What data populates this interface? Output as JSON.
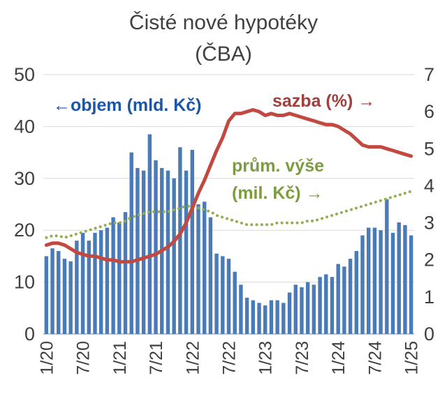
{
  "title": "Čisté nové hypotéky",
  "subtitle": "(ČBA)",
  "annotations": {
    "volume_label": "←objem (mld. Kč)",
    "rate_label": "sazba (%) →",
    "avg_label_line1": "prům. výše",
    "avg_label_line2": "(mil. Kč) →"
  },
  "colors": {
    "title_text": "#404040",
    "bar": "#4a7bb7",
    "rate_line": "#c2493f",
    "avg_line": "#94ad52",
    "volume_text": "#1b56a8",
    "rate_text": "#a33f3b",
    "avg_text": "#7d9c42",
    "axis_text": "#3f3f3f",
    "grid": "#d9d9d9"
  },
  "chart_data": {
    "type": "bar",
    "subtype": "combo bar + line, dual axis",
    "title": "Čisté nové hypotéky (ČBA)",
    "x": [
      "1/20",
      "2/20",
      "3/20",
      "4/20",
      "5/20",
      "6/20",
      "7/20",
      "8/20",
      "9/20",
      "10/20",
      "11/20",
      "12/20",
      "1/21",
      "2/21",
      "3/21",
      "4/21",
      "5/21",
      "6/21",
      "7/21",
      "8/21",
      "9/21",
      "10/21",
      "11/21",
      "12/21",
      "1/22",
      "2/22",
      "3/22",
      "4/22",
      "5/22",
      "6/22",
      "7/22",
      "8/22",
      "9/22",
      "10/22",
      "11/22",
      "12/22",
      "1/23",
      "2/23",
      "3/23",
      "4/23",
      "5/23",
      "6/23",
      "7/23",
      "8/23",
      "9/23",
      "10/23",
      "11/23",
      "12/23",
      "1/24",
      "2/24",
      "3/24",
      "4/24",
      "5/24",
      "6/24",
      "7/24",
      "8/24",
      "9/24",
      "10/24",
      "11/24",
      "12/24",
      "1/25"
    ],
    "x_tick_labels": [
      "1/20",
      "7/20",
      "1/21",
      "7/21",
      "1/22",
      "7/22",
      "1/23",
      "7/23",
      "1/24",
      "7/24",
      "1/25"
    ],
    "left_axis": {
      "label": "objem (mld. Kč)",
      "min": 0,
      "max": 50,
      "ticks": [
        0,
        10,
        20,
        30,
        40,
        50
      ]
    },
    "right_axis": {
      "label": "sazba (%) / prům. výše (mil. Kč)",
      "min": 0,
      "max": 7,
      "ticks": [
        0,
        1,
        2,
        3,
        4,
        5,
        6,
        7
      ]
    },
    "grid": "horizontal",
    "legend_position": "in-plot text annotations",
    "series": [
      {
        "name": "objem (mld. Kč)",
        "type": "bar",
        "axis": "left",
        "color": "#4a7bb7",
        "values": [
          15,
          16.5,
          16,
          14.5,
          14,
          18,
          19.5,
          18,
          19.5,
          20,
          20.5,
          22.5,
          21.5,
          23.5,
          35,
          32,
          31.5,
          38.5,
          33.5,
          32,
          31.5,
          30,
          36,
          31.5,
          35.5,
          25,
          25.5,
          22.5,
          15.5,
          15,
          14.5,
          12,
          9.5,
          7,
          6.5,
          6,
          5.5,
          6.5,
          6.5,
          6,
          8,
          9.5,
          9,
          10,
          9.5,
          11,
          11.5,
          11,
          13.5,
          13,
          14.5,
          16,
          19,
          20.5,
          20.5,
          20,
          26,
          19.5,
          21.5,
          21,
          19
        ]
      },
      {
        "name": "prům. výše (mil. Kč)",
        "type": "dotted",
        "axis": "right",
        "color": "#94ad52",
        "values": [
          2.6,
          2.65,
          2.65,
          2.6,
          2.65,
          2.7,
          2.75,
          2.8,
          2.85,
          2.9,
          2.95,
          3.0,
          3.0,
          3.05,
          3.15,
          3.2,
          3.25,
          3.3,
          3.3,
          3.3,
          3.3,
          3.35,
          3.4,
          3.45,
          3.45,
          3.4,
          3.35,
          3.3,
          3.2,
          3.15,
          3.1,
          3.05,
          3.0,
          2.95,
          2.95,
          2.95,
          2.95,
          2.95,
          3.0,
          3.0,
          3.0,
          3.0,
          3.0,
          3.05,
          3.05,
          3.1,
          3.15,
          3.2,
          3.25,
          3.3,
          3.35,
          3.4,
          3.45,
          3.5,
          3.55,
          3.6,
          3.65,
          3.7,
          3.75,
          3.8,
          3.85
        ]
      },
      {
        "name": "sazba (%)",
        "type": "line",
        "axis": "right",
        "color": "#c2493f",
        "values": [
          2.4,
          2.45,
          2.45,
          2.4,
          2.3,
          2.2,
          2.15,
          2.1,
          2.1,
          2.05,
          2.0,
          2.0,
          1.95,
          1.95,
          1.95,
          2.0,
          2.05,
          2.1,
          2.15,
          2.25,
          2.35,
          2.5,
          2.7,
          3.0,
          3.4,
          3.8,
          4.15,
          4.55,
          4.95,
          5.3,
          5.75,
          5.95,
          5.95,
          6.0,
          6.05,
          6.0,
          5.9,
          5.95,
          5.9,
          5.9,
          5.95,
          5.9,
          5.85,
          5.8,
          5.75,
          5.7,
          5.65,
          5.65,
          5.6,
          5.5,
          5.4,
          5.25,
          5.1,
          5.05,
          5.05,
          5.05,
          5.0,
          4.95,
          4.9,
          4.85,
          4.8
        ]
      }
    ]
  }
}
